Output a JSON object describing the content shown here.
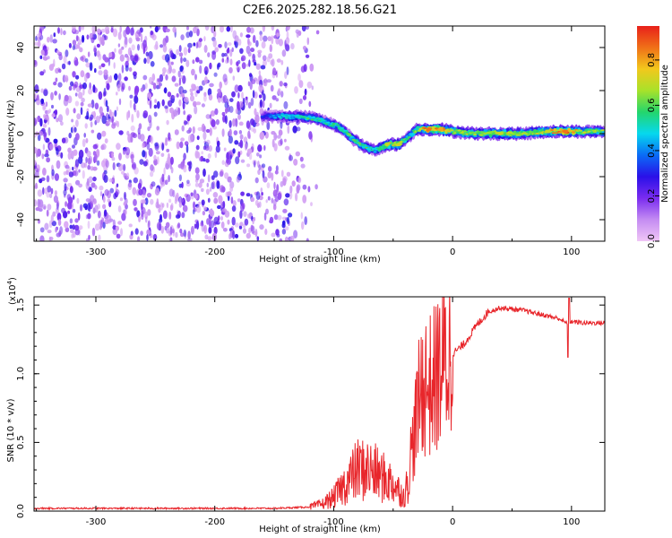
{
  "title": "C2E6.2025.282.18.56.G21",
  "colors": {
    "snr_line": "#e8262b",
    "background": "#ffffff",
    "colormap": [
      "#f0c6f6",
      "#c48cf2",
      "#7a2cf0",
      "#2a10e8",
      "#0a6cf6",
      "#06d8ee",
      "#24d66c",
      "#a8e22a",
      "#f2c81c",
      "#f07018",
      "#e8201a"
    ]
  },
  "chart_data": [
    {
      "type": "heatmap",
      "title": "C2E6.2025.282.18.56.G21",
      "xlabel": "Height of straight line (km)",
      "ylabel": "Frequency (Hz)",
      "xlim": [
        -352,
        128
      ],
      "ylim": [
        -50,
        50
      ],
      "xticks": [
        -300,
        -200,
        -100,
        0,
        100
      ],
      "yticks": [
        -40,
        -20,
        0,
        20,
        40
      ],
      "colorbar": {
        "label": "Normalized spectral amplitude",
        "range": [
          0.0,
          0.95
        ],
        "ticks": [
          0.0,
          0.2,
          0.4,
          0.6,
          0.8
        ]
      },
      "noise_region": {
        "x_from": -352,
        "x_to": -120,
        "amplitude": [
          0.05,
          0.3
        ]
      },
      "ridge": [
        {
          "x": -160,
          "y": 8,
          "amp": 0.3
        },
        {
          "x": -145,
          "y": 8,
          "amp": 0.45
        },
        {
          "x": -130,
          "y": 8,
          "amp": 0.5
        },
        {
          "x": -115,
          "y": 7,
          "amp": 0.55
        },
        {
          "x": -105,
          "y": 5,
          "amp": 0.5
        },
        {
          "x": -95,
          "y": 3,
          "amp": 0.55
        },
        {
          "x": -85,
          "y": -2,
          "amp": 0.55
        },
        {
          "x": -75,
          "y": -6,
          "amp": 0.55
        },
        {
          "x": -65,
          "y": -8,
          "amp": 0.5
        },
        {
          "x": -55,
          "y": -5,
          "amp": 0.7
        },
        {
          "x": -45,
          "y": -5,
          "amp": 0.7
        },
        {
          "x": -38,
          "y": -2,
          "amp": 0.5
        },
        {
          "x": -30,
          "y": 2,
          "amp": 0.6
        },
        {
          "x": -20,
          "y": 2,
          "amp": 0.85
        },
        {
          "x": -10,
          "y": 2,
          "amp": 0.8
        },
        {
          "x": 0,
          "y": 1,
          "amp": 0.65
        },
        {
          "x": 20,
          "y": 0,
          "amp": 0.65
        },
        {
          "x": 40,
          "y": 0,
          "amp": 0.7
        },
        {
          "x": 60,
          "y": 0,
          "amp": 0.65
        },
        {
          "x": 80,
          "y": 1,
          "amp": 0.7
        },
        {
          "x": 95,
          "y": 1,
          "amp": 0.85
        },
        {
          "x": 110,
          "y": 1,
          "amp": 0.65
        },
        {
          "x": 128,
          "y": 1,
          "amp": 0.6
        }
      ]
    },
    {
      "type": "line",
      "xlabel": "Height of straight line (km)",
      "ylabel": "SNR (10 * v/v)",
      "scale_label": "(x10",
      "scale_exponent": "4",
      "xlim": [
        -352,
        128
      ],
      "ylim": [
        0,
        1.56
      ],
      "xticks": [
        -300,
        -200,
        -100,
        0,
        100
      ],
      "yticks": [
        0.0,
        0.5,
        1.0,
        1.5
      ],
      "ytick_labels": [
        "0.0",
        "0.5",
        "1.0",
        "1.5"
      ],
      "series": [
        {
          "x": [
            -352,
            -300,
            -250,
            -200,
            -150,
            -120,
            -110,
            -100,
            -90,
            -80,
            -70,
            -60,
            -50,
            -45,
            -40,
            -35,
            -30,
            -25,
            -20,
            -15,
            -10,
            -5,
            0,
            5,
            10,
            20,
            30,
            40,
            50,
            60,
            70,
            80,
            90,
            95,
            100,
            110,
            120,
            128
          ],
          "y": [
            0.02,
            0.02,
            0.02,
            0.02,
            0.02,
            0.03,
            0.05,
            0.1,
            0.2,
            0.3,
            0.3,
            0.25,
            0.2,
            0.15,
            0.1,
            0.4,
            0.7,
            0.95,
            0.9,
            0.95,
            1.05,
            1.1,
            1.15,
            1.18,
            1.22,
            1.35,
            1.45,
            1.48,
            1.47,
            1.46,
            1.44,
            1.42,
            1.4,
            1.37,
            1.38,
            1.37,
            1.37,
            1.37
          ]
        }
      ]
    }
  ]
}
